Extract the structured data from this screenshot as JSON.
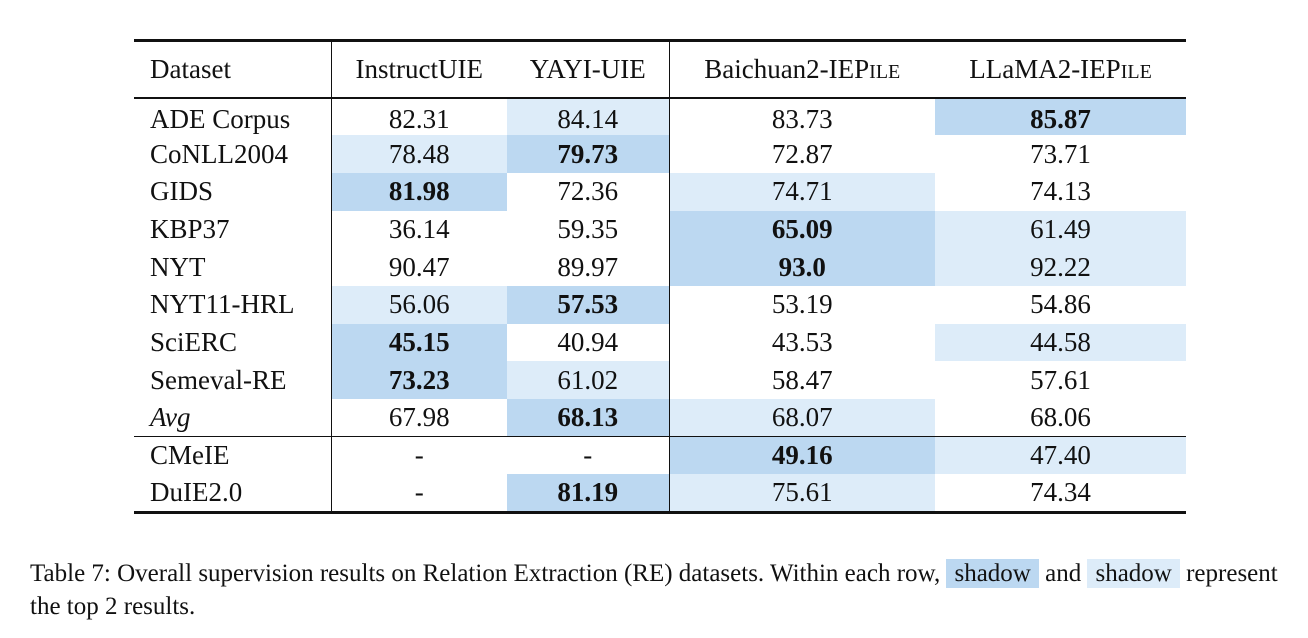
{
  "table": {
    "headers": {
      "dataset": "Dataset",
      "instructuie": "InstructUIE",
      "yayi": "YAYI-UIE",
      "baichuan_main": "Baichuan2-IEP",
      "baichuan_sc": "ILE",
      "llama_main": "LLaMA2-IEP",
      "llama_sc": "ILE"
    },
    "rows": [
      {
        "name": "ADE Corpus",
        "v": [
          "82.31",
          "84.14",
          "83.73",
          "85.87"
        ]
      },
      {
        "name": "CoNLL2004",
        "v": [
          "78.48",
          "79.73",
          "72.87",
          "73.71"
        ]
      },
      {
        "name": "GIDS",
        "v": [
          "81.98",
          "72.36",
          "74.71",
          "74.13"
        ]
      },
      {
        "name": "KBP37",
        "v": [
          "36.14",
          "59.35",
          "65.09",
          "61.49"
        ]
      },
      {
        "name": "NYT",
        "v": [
          "90.47",
          "89.97",
          "93.0",
          "92.22"
        ]
      },
      {
        "name": "NYT11-HRL",
        "v": [
          "56.06",
          "57.53",
          "53.19",
          "54.86"
        ]
      },
      {
        "name": "SciERC",
        "v": [
          "45.15",
          "40.94",
          "43.53",
          "44.58"
        ]
      },
      {
        "name": "Semeval-RE",
        "v": [
          "73.23",
          "61.02",
          "58.47",
          "57.61"
        ]
      },
      {
        "name": "Avg",
        "v": [
          "67.98",
          "68.13",
          "68.07",
          "68.06"
        ]
      },
      {
        "name": "CMeIE",
        "v": [
          "-",
          "-",
          "49.16",
          "47.40"
        ]
      },
      {
        "name": "DuIE2.0",
        "v": [
          "-",
          "81.19",
          "75.61",
          "74.34"
        ]
      }
    ]
  },
  "caption": {
    "before": "Table 7: Overall supervision results on Relation Extraction (RE) datasets. Within each row, ",
    "swatch1": "shadow",
    "middle": " and ",
    "swatch2": "shadow",
    "after": " represent the top 2 results."
  },
  "colors": {
    "top1_shade": "#bcd8f1",
    "top2_shade": "#ddecf9"
  }
}
